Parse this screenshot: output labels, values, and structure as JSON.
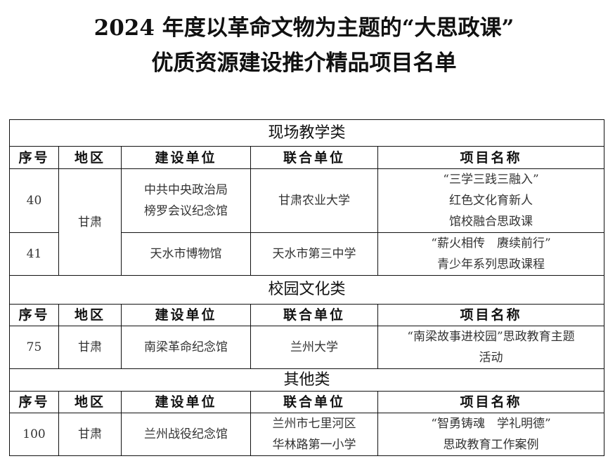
{
  "title": {
    "line1": "2024 年度以革命文物为主题的“大思政课”",
    "line2": "优质资源建设推介精品项目名单"
  },
  "columns": [
    "序号",
    "地区",
    "建设单位",
    "联合单位",
    "项目名称"
  ],
  "sections": [
    {
      "name": "现场教学类",
      "rows": [
        {
          "no": "40",
          "region": "甘肃",
          "builder": [
            "中共中央政治局",
            "榜罗会议纪念馆"
          ],
          "partner": [
            "甘肃农业大学"
          ],
          "project": [
            "“三学三践三融入”",
            "红色文化育新人",
            "馆校融合思政课"
          ]
        },
        {
          "no": "41",
          "region": "甘肃",
          "builder": [
            "天水市博物馆"
          ],
          "partner": [
            "天水市第三中学"
          ],
          "project": [
            "“薪火相传　赓续前行”",
            "青少年系列思政课程"
          ]
        }
      ]
    },
    {
      "name": "校园文化类",
      "rows": [
        {
          "no": "75",
          "region": "甘肃",
          "builder": [
            "南梁革命纪念馆"
          ],
          "partner": [
            "兰州大学"
          ],
          "project": [
            "“南梁故事进校园”思政教育主题",
            "活动"
          ]
        }
      ]
    },
    {
      "name": "其他类",
      "rows": [
        {
          "no": "100",
          "region": "甘肃",
          "builder": [
            "兰州战役纪念馆"
          ],
          "partner": [
            "兰州市七里河区",
            "华林路第一小学"
          ],
          "project": [
            "“智勇铸魂　学礼明德”",
            "思政教育工作案例"
          ]
        }
      ]
    }
  ]
}
